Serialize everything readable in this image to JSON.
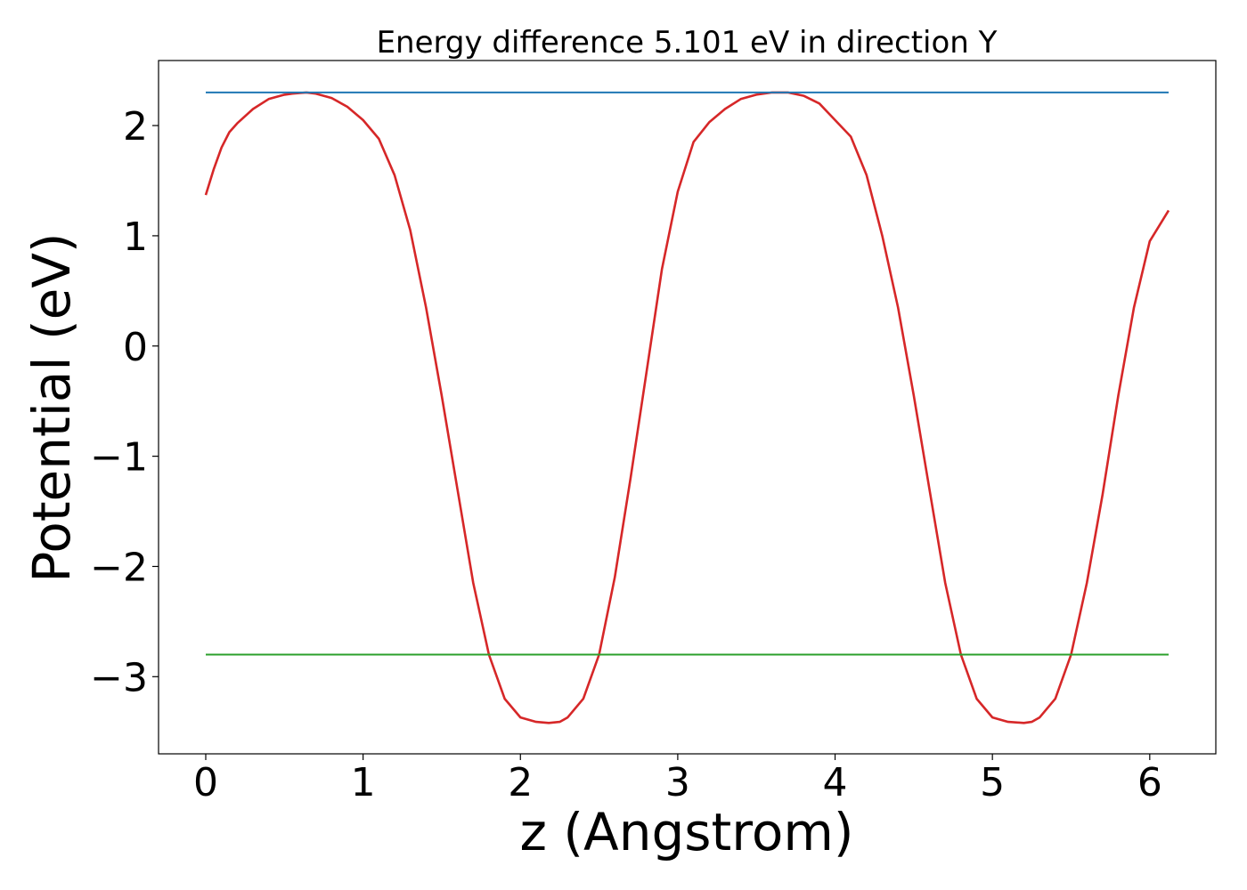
{
  "chart_data": {
    "type": "line",
    "title": "Energy difference 5.101 eV in direction Y",
    "xlabel": "z (Angstrom)",
    "ylabel": "Potential (eV)",
    "xlim": [
      -0.3,
      6.42
    ],
    "ylim": [
      -3.7,
      2.59
    ],
    "xticks": [
      0,
      1,
      2,
      3,
      4,
      5,
      6
    ],
    "yticks": [
      -3,
      -2,
      -1,
      0,
      1,
      2
    ],
    "grid": false,
    "legend": "none",
    "series": [
      {
        "color": "#d62728",
        "x": [
          0.0,
          0.05,
          0.1,
          0.15,
          0.2,
          0.3,
          0.4,
          0.5,
          0.55,
          0.6,
          0.64,
          0.7,
          0.8,
          0.9,
          1.0,
          1.1,
          1.2,
          1.3,
          1.4,
          1.5,
          1.6,
          1.7,
          1.8,
          1.9,
          2.0,
          2.1,
          2.18,
          2.25,
          2.3,
          2.4,
          2.5,
          2.6,
          2.7,
          2.8,
          2.9,
          3.0,
          3.1,
          3.2,
          3.3,
          3.4,
          3.5,
          3.6,
          3.7,
          3.8,
          3.9,
          4.0,
          4.1,
          4.2,
          4.3,
          4.4,
          4.5,
          4.6,
          4.7,
          4.8,
          4.9,
          5.0,
          5.1,
          5.2,
          5.25,
          5.3,
          5.4,
          5.5,
          5.6,
          5.7,
          5.8,
          5.9,
          6.0,
          6.12
        ],
        "y": [
          1.37,
          1.6,
          1.8,
          1.94,
          2.02,
          2.15,
          2.24,
          2.28,
          2.29,
          2.295,
          2.3,
          2.29,
          2.25,
          2.17,
          2.05,
          1.88,
          1.55,
          1.05,
          0.35,
          -0.45,
          -1.3,
          -2.15,
          -2.8,
          -3.2,
          -3.37,
          -3.41,
          -3.42,
          -3.41,
          -3.37,
          -3.2,
          -2.8,
          -2.1,
          -1.2,
          -0.25,
          0.7,
          1.4,
          1.85,
          2.03,
          2.15,
          2.24,
          2.28,
          2.3,
          2.3,
          2.27,
          2.2,
          2.05,
          1.9,
          1.55,
          1.0,
          0.35,
          -0.45,
          -1.3,
          -2.15,
          -2.8,
          -3.2,
          -3.37,
          -3.41,
          -3.42,
          -3.41,
          -3.37,
          -3.2,
          -2.8,
          -2.15,
          -1.35,
          -0.45,
          0.35,
          0.95,
          1.23
        ]
      },
      {
        "color": "#1f77b4",
        "x": [
          0.0,
          6.12
        ],
        "y": [
          2.3,
          2.3
        ]
      },
      {
        "color": "#2ca02c",
        "x": [
          0.0,
          6.12
        ],
        "y": [
          -2.8,
          -2.8
        ]
      }
    ]
  }
}
